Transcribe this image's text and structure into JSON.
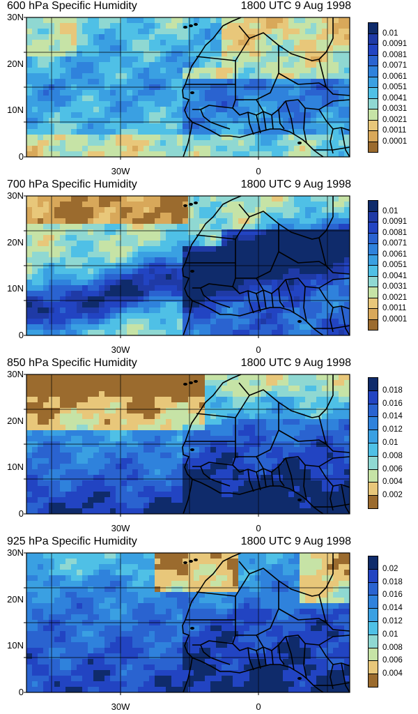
{
  "panels": [
    {
      "title": "600 hPa Specific Humidity",
      "time": "1800 UTC 9 Aug 1998",
      "legend_labels": [
        "0.01",
        "0.0091",
        "0.0081",
        "0.0071",
        "0.0061",
        "0.0051",
        "0.0041",
        "0.0031",
        "0.0021",
        "0.0011",
        "0.0001"
      ],
      "colors": [
        "#0f2b6b",
        "#1f3aa6",
        "#2244c2",
        "#2a63d0",
        "#2f82dc",
        "#3aa0e2",
        "#4fc0e6",
        "#8fd8d2",
        "#c6e3a6",
        "#e8c77a",
        "#d8a85a",
        "#9b6b2e"
      ],
      "field": "moist-band"
    },
    {
      "title": "700 hPa Specific Humidity",
      "time": "1800 UTC 9 Aug 1998",
      "legend_labels": [
        "0.01",
        "0.0091",
        "0.0081",
        "0.0071",
        "0.0061",
        "0.0051",
        "0.0041",
        "0.0031",
        "0.0021",
        "0.0011",
        "0.0001"
      ],
      "colors": [
        "#0f2b6b",
        "#1f3aa6",
        "#2244c2",
        "#2a63d0",
        "#2f82dc",
        "#3aa0e2",
        "#4fc0e6",
        "#8fd8d2",
        "#c6e3a6",
        "#e8c77a",
        "#d8a85a",
        "#9b6b2e"
      ],
      "field": "dense-band"
    },
    {
      "title": "850 hPa Specific Humidity",
      "time": "1800 UTC 9 Aug 1998",
      "legend_labels": [
        "0.018",
        "0.016",
        "0.014",
        "0.012",
        "0.01",
        "0.008",
        "0.006",
        "0.004",
        "0.002"
      ],
      "colors": [
        "#0f2b6b",
        "#2244c2",
        "#2a63d0",
        "#2f82dc",
        "#3aa0e2",
        "#4fc0e6",
        "#8fd8d2",
        "#c6e3a6",
        "#e8c77a",
        "#9b6b2e"
      ],
      "field": "dry-north"
    },
    {
      "title": "925 hPa Specific Humidity",
      "time": "1800 UTC 9 Aug 1998",
      "legend_labels": [
        "0.02",
        "0.018",
        "0.016",
        "0.014",
        "0.012",
        "0.01",
        "0.008",
        "0.006",
        "0.004"
      ],
      "colors": [
        "#0f2b6b",
        "#2244c2",
        "#2a63d0",
        "#2f82dc",
        "#3aa0e2",
        "#4fc0e6",
        "#8fd8d2",
        "#c6e3a6",
        "#e8c77a",
        "#9b6b2e"
      ],
      "field": "moist-ocean"
    }
  ],
  "axes": {
    "y_ticks": [
      "30N",
      "20N",
      "10N",
      "0"
    ],
    "x_ticks": [
      "30W",
      "0"
    ]
  }
}
